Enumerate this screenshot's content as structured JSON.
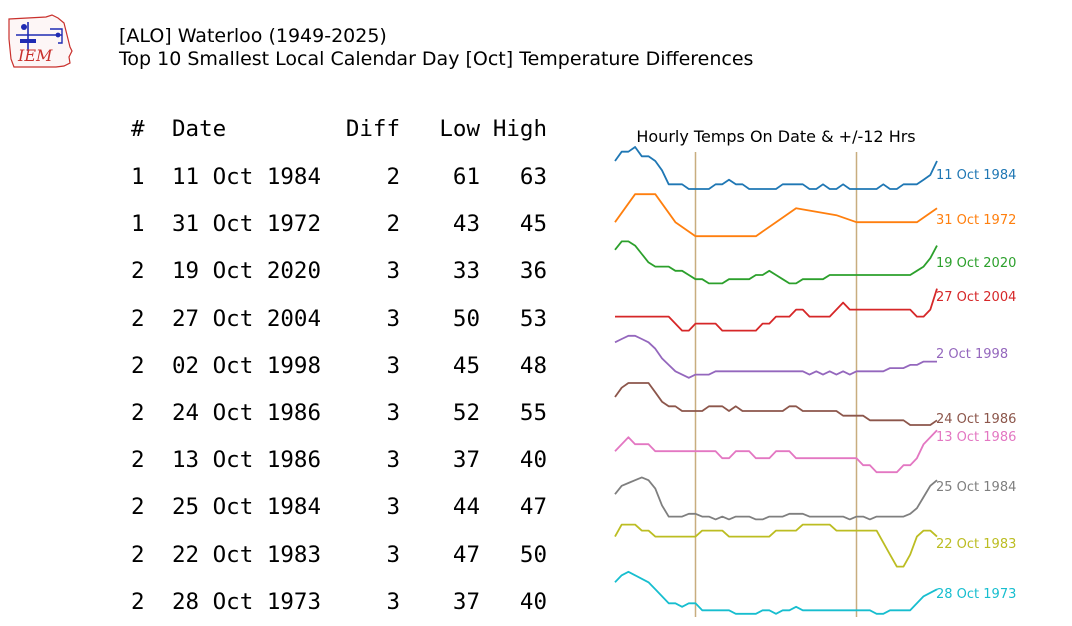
{
  "header": {
    "title_line1": "[ALO] Waterloo (1949-2025)",
    "title_line2": "Top 10 Smallest Local Calendar Day [Oct] Temperature Differences",
    "logo_text": "IEM"
  },
  "table": {
    "columns": [
      "#",
      "Date",
      "Diff",
      "Low",
      "High"
    ],
    "rows": [
      {
        "rank": "1",
        "date": "11 Oct 1984",
        "diff": "2",
        "low": "61",
        "high": "63"
      },
      {
        "rank": "1",
        "date": "31 Oct 1972",
        "diff": "2",
        "low": "43",
        "high": "45"
      },
      {
        "rank": "2",
        "date": "19 Oct 2020",
        "diff": "3",
        "low": "33",
        "high": "36"
      },
      {
        "rank": "2",
        "date": "27 Oct 2004",
        "diff": "3",
        "low": "50",
        "high": "53"
      },
      {
        "rank": "2",
        "date": "02 Oct 1998",
        "diff": "3",
        "low": "45",
        "high": "48"
      },
      {
        "rank": "2",
        "date": "24 Oct 1986",
        "diff": "3",
        "low": "52",
        "high": "55"
      },
      {
        "rank": "2",
        "date": "13 Oct 1986",
        "diff": "3",
        "low": "37",
        "high": "40"
      },
      {
        "rank": "2",
        "date": "25 Oct 1984",
        "diff": "3",
        "low": "44",
        "high": "47"
      },
      {
        "rank": "2",
        "date": "22 Oct 1983",
        "diff": "3",
        "low": "47",
        "high": "50"
      },
      {
        "rank": "2",
        "date": "28 Oct 1973",
        "diff": "3",
        "low": "37",
        "high": "40"
      }
    ]
  },
  "chart_data": {
    "type": "line",
    "title": "Hourly Temps On Date & +/-12 Hrs",
    "x_unit": "hours from local midnight",
    "x_range": [
      -12,
      36
    ],
    "day_markers": [
      0,
      24
    ],
    "marker_color": "#c8ad7f",
    "series": [
      {
        "name": "11 Oct 1984",
        "color": "#1f77b4",
        "x": [
          -12,
          -11,
          -10,
          -9,
          -8,
          -7,
          -6,
          -5,
          -4,
          -3,
          -2,
          -1,
          0,
          1,
          2,
          3,
          4,
          5,
          6,
          7,
          8,
          9,
          10,
          11,
          12,
          13,
          14,
          15,
          16,
          17,
          18,
          19,
          20,
          21,
          22,
          23,
          24,
          25,
          26,
          27,
          28,
          29,
          30,
          31,
          32,
          33,
          34,
          35,
          36
        ],
        "temps": [
          68,
          70,
          70,
          71,
          69,
          69,
          68,
          66,
          63,
          63,
          63,
          62,
          62,
          62,
          62,
          63,
          63,
          64,
          63,
          63,
          62,
          62,
          62,
          62,
          62,
          63,
          63,
          63,
          63,
          62,
          62,
          63,
          62,
          62,
          63,
          62,
          62,
          62,
          62,
          62,
          63,
          62,
          62,
          63,
          63,
          63,
          64,
          65,
          68
        ]
      },
      {
        "name": "31 Oct 1972",
        "color": "#ff7f0e",
        "x": [
          -12,
          -9,
          -7,
          -6,
          -3,
          0,
          3,
          9,
          12,
          15,
          21,
          24,
          33,
          36
        ],
        "temps": [
          48,
          52,
          52,
          52,
          48,
          46,
          46,
          46,
          48,
          50,
          49,
          48,
          48,
          50
        ]
      },
      {
        "name": "19 Oct 2020",
        "color": "#2ca02c",
        "x": [
          -12,
          -11,
          -10,
          -9,
          -8,
          -7,
          -6,
          -5,
          -4,
          -3,
          -2,
          -1,
          0,
          1,
          2,
          3,
          4,
          5,
          6,
          7,
          8,
          9,
          10,
          11,
          12,
          13,
          14,
          15,
          16,
          17,
          18,
          19,
          20,
          21,
          22,
          23,
          24,
          25,
          26,
          27,
          28,
          29,
          30,
          31,
          32,
          33,
          34,
          35,
          36
        ],
        "temps": [
          41,
          43,
          43,
          42,
          40,
          38,
          37,
          37,
          37,
          36,
          36,
          35,
          34,
          34,
          33,
          33,
          33,
          34,
          34,
          34,
          34,
          35,
          35,
          36,
          35,
          34,
          33,
          33,
          34,
          34,
          34,
          34,
          35,
          35,
          35,
          35,
          35,
          35,
          35,
          35,
          35,
          35,
          35,
          35,
          35,
          36,
          37,
          39,
          42
        ]
      },
      {
        "name": "27 Oct 2004",
        "color": "#d62728",
        "x": [
          -12,
          -10,
          -8,
          -6,
          -4,
          -3,
          -2,
          -1,
          0,
          1,
          2,
          3,
          4,
          5,
          6,
          7,
          8,
          9,
          10,
          11,
          12,
          13,
          14,
          15,
          16,
          17,
          18,
          19,
          20,
          21,
          22,
          23,
          24,
          25,
          26,
          27,
          28,
          29,
          30,
          31,
          32,
          33,
          34,
          35,
          36
        ],
        "temps": [
          52,
          52,
          52,
          52,
          52,
          51,
          50,
          50,
          51,
          51,
          51,
          51,
          50,
          50,
          50,
          50,
          50,
          50,
          51,
          51,
          52,
          52,
          52,
          53,
          53,
          52,
          52,
          52,
          52,
          53,
          54,
          53,
          53,
          53,
          53,
          53,
          53,
          53,
          53,
          53,
          53,
          52,
          52,
          53,
          56
        ]
      },
      {
        "name": "2 Oct 1998",
        "color": "#9467bd",
        "x": [
          -12,
          -11,
          -10,
          -9,
          -8,
          -7,
          -6,
          -5,
          -4,
          -3,
          -2,
          -1,
          0,
          1,
          2,
          3,
          4,
          5,
          6,
          7,
          8,
          9,
          10,
          11,
          12,
          13,
          14,
          15,
          16,
          17,
          18,
          19,
          20,
          21,
          22,
          23,
          24,
          25,
          26,
          27,
          28,
          29,
          30,
          31,
          32,
          33,
          34,
          35,
          36
        ],
        "temps": [
          57,
          58,
          59,
          59,
          58,
          57,
          55,
          52,
          50,
          48,
          47,
          46,
          47,
          47,
          47,
          48,
          48,
          48,
          48,
          48,
          48,
          48,
          48,
          48,
          48,
          48,
          48,
          48,
          48,
          47,
          48,
          47,
          48,
          47,
          48,
          47,
          48,
          48,
          48,
          48,
          48,
          49,
          49,
          49,
          50,
          50,
          51,
          51,
          51
        ]
      },
      {
        "name": "24 Oct 1986",
        "color": "#8c564b",
        "x": [
          -12,
          -11,
          -10,
          -9,
          -8,
          -7,
          -6,
          -5,
          -4,
          -3,
          -2,
          -1,
          0,
          1,
          2,
          3,
          4,
          5,
          6,
          7,
          8,
          9,
          10,
          11,
          12,
          13,
          14,
          15,
          16,
          17,
          18,
          19,
          20,
          21,
          22,
          23,
          24,
          25,
          26,
          27,
          28,
          29,
          30,
          31,
          32,
          33,
          34,
          35,
          36
        ],
        "temps": [
          59,
          61,
          62,
          62,
          62,
          62,
          60,
          58,
          57,
          57,
          56,
          56,
          56,
          56,
          57,
          57,
          57,
          56,
          57,
          56,
          56,
          56,
          56,
          56,
          56,
          56,
          57,
          57,
          56,
          56,
          56,
          56,
          56,
          56,
          55,
          55,
          55,
          55,
          54,
          54,
          54,
          54,
          54,
          54,
          53,
          53,
          53,
          53,
          54
        ]
      },
      {
        "name": "13 Oct 1986",
        "color": "#e377c2",
        "x": [
          -12,
          -11,
          -10,
          -9,
          -8,
          -7,
          -6,
          -5,
          -4,
          -3,
          -2,
          -1,
          0,
          1,
          2,
          3,
          4,
          5,
          6,
          7,
          8,
          9,
          10,
          11,
          12,
          13,
          14,
          15,
          16,
          17,
          18,
          19,
          20,
          21,
          22,
          23,
          24,
          25,
          26,
          27,
          28,
          29,
          30,
          31,
          32,
          33,
          34,
          35,
          36
        ],
        "temps": [
          40,
          41,
          42,
          41,
          41,
          41,
          40,
          40,
          40,
          40,
          40,
          40,
          40,
          40,
          40,
          40,
          39,
          39,
          40,
          40,
          40,
          39,
          39,
          39,
          40,
          40,
          40,
          39,
          39,
          39,
          39,
          39,
          39,
          39,
          39,
          39,
          39,
          38,
          38,
          37,
          37,
          37,
          37,
          38,
          38,
          39,
          41,
          42,
          43
        ]
      },
      {
        "name": "25 Oct 1984",
        "color": "#7f7f7f",
        "x": [
          -12,
          -11,
          -10,
          -9,
          -8,
          -7,
          -6,
          -5,
          -4,
          -3,
          -2,
          -1,
          0,
          1,
          2,
          3,
          4,
          5,
          6,
          7,
          8,
          9,
          10,
          11,
          12,
          13,
          14,
          15,
          16,
          17,
          18,
          19,
          20,
          21,
          22,
          23,
          24,
          25,
          26,
          27,
          28,
          29,
          30,
          31,
          32,
          33,
          34,
          35,
          36
        ],
        "temps": [
          52,
          55,
          56,
          57,
          58,
          57,
          54,
          48,
          44,
          44,
          44,
          45,
          45,
          44,
          44,
          43,
          44,
          43,
          44,
          44,
          44,
          43,
          43,
          44,
          44,
          44,
          45,
          45,
          45,
          44,
          44,
          44,
          44,
          44,
          44,
          43,
          44,
          44,
          43,
          44,
          44,
          44,
          44,
          44,
          45,
          47,
          51,
          55,
          57
        ]
      },
      {
        "name": "22 Oct 1983",
        "color": "#bcbd22",
        "x": [
          -12,
          -11,
          -10,
          -9,
          -8,
          -7,
          -6,
          -5,
          -4,
          -3,
          -2,
          -1,
          0,
          1,
          2,
          3,
          4,
          5,
          6,
          7,
          8,
          9,
          10,
          11,
          12,
          13,
          14,
          15,
          16,
          17,
          18,
          19,
          20,
          21,
          22,
          23,
          24,
          25,
          26,
          27,
          28,
          29,
          30,
          31,
          32,
          33,
          34,
          35,
          36
        ],
        "temps": [
          47,
          49,
          49,
          49,
          48,
          48,
          47,
          47,
          47,
          47,
          47,
          47,
          47,
          48,
          48,
          48,
          48,
          47,
          47,
          47,
          47,
          47,
          47,
          47,
          48,
          48,
          48,
          48,
          49,
          49,
          49,
          49,
          49,
          48,
          48,
          48,
          48,
          48,
          48,
          48,
          46,
          44,
          42,
          42,
          44,
          47,
          48,
          48,
          47
        ]
      },
      {
        "name": "28 Oct 1973",
        "color": "#17becf",
        "x": [
          -12,
          -11,
          -10,
          -9,
          -8,
          -7,
          -6,
          -5,
          -4,
          -3,
          -2,
          -1,
          0,
          1,
          2,
          3,
          4,
          5,
          6,
          7,
          8,
          9,
          10,
          11,
          12,
          13,
          14,
          15,
          16,
          17,
          18,
          19,
          20,
          21,
          22,
          23,
          24,
          25,
          26,
          27,
          28,
          29,
          30,
          31,
          32,
          33,
          34,
          35,
          36
        ],
        "temps": [
          46,
          48,
          49,
          48,
          47,
          46,
          44,
          42,
          40,
          40,
          39,
          40,
          40,
          38,
          38,
          38,
          38,
          38,
          37,
          37,
          37,
          37,
          38,
          38,
          37,
          38,
          38,
          39,
          38,
          38,
          38,
          38,
          38,
          38,
          38,
          38,
          38,
          38,
          38,
          37,
          37,
          38,
          38,
          38,
          38,
          40,
          42,
          43,
          44
        ]
      }
    ]
  }
}
